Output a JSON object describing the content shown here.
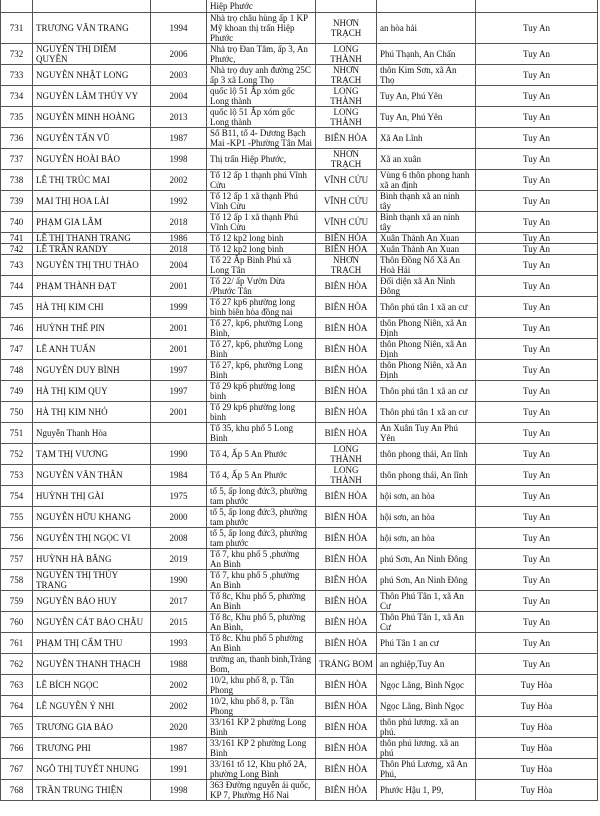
{
  "partial_row": {
    "address": "Hiệp Phước"
  },
  "rows": [
    [
      "731",
      "TRƯƠNG VĂN TRANG",
      "1994",
      "Nhà trọ châu hùng ấp 1 KP Mỹ khoan thị trấn Hiệp Phước",
      "NHƠN TRẠCH",
      "an hòa hải",
      "Tuy An"
    ],
    [
      "732",
      "NGUYỄN THỊ DIỄM QUYÊN",
      "2006",
      "Nhà trọ Đan Tâm, ấp 3, An Phước,",
      "LONG THÀNH",
      "Phú Thạnh, An Chấn",
      "Tuy An"
    ],
    [
      "733",
      "NGUYỄN NHẬT LONG",
      "2003",
      "Nhà trọ duy anh đường 25C ấp 3 xã Long Thọ",
      "NHƠN TRẠCH",
      "thôn Kim Sơn, xã An Thọ",
      "Tuy An"
    ],
    [
      "734",
      "NGUYỄN LÂM THÚY VY",
      "2004",
      "quốc lộ 51 Ấp xóm gốc Long thành",
      "LONG THÀNH",
      "Tuy An, Phú Yên",
      "Tuy An"
    ],
    [
      "735",
      "NGUYỄN MINH HOÀNG",
      "2013",
      "quốc lộ 51 Ấp xóm gốc Long thành",
      "LONG THÀNH",
      "Tuy An, Phú Yên",
      "Tuy An"
    ],
    [
      "736",
      "NGUYỄN TẤN VŨ",
      "1987",
      "Số B11, tổ 4- Dương Bạch Mai -KP1 -Phường Tân Mai",
      "BIÊN HÒA",
      "Xã An Lĩnh",
      "Tuy An"
    ],
    [
      "737",
      "NGUYỄN HOÀI BẢO",
      "1998",
      "Thị trấn Hiệp Phước,",
      "NHƠN TRẠCH",
      "Xã an xuân",
      "Tuy An"
    ],
    [
      "738",
      "LÊ THỊ TRÚC MAI",
      "2002",
      "Tổ 12 ấp 1 thạnh phú Vĩnh Cửu",
      "VĨNH CỬU",
      "Vùng 6 thôn phong hanh xã an định",
      "Tuy An"
    ],
    [
      "739",
      "MAI THỊ HOA LÀI",
      "1992",
      "Tổ 12 ấp 1 xã thạnh Phú Vĩnh Cửu",
      "VĨNH CỬU",
      "Bình thạnh xã an ninh tây",
      "Tuy An"
    ],
    [
      "740",
      "PHẠM GIA LÂM",
      "2018",
      "Tổ 12 ấp 1 xã thạnh Phú Vĩnh Cửu",
      "VĨNH CỬU",
      "Bình thạnh xã an ninh tây",
      "Tuy An"
    ],
    [
      "741",
      "LÊ THỊ THANH TRANG",
      "1986",
      "Tổ 12 kp2 long bình",
      "BIÊN HÒA",
      "Xuân Thành An Xuan",
      "Tuy An"
    ],
    [
      "742",
      "LÊ TRẦN RANDY",
      "2018",
      "Tổ 12 kp2 long bình",
      "BIÊN HÒA",
      "Xuân Thành An Xuan",
      "Tuy An"
    ],
    [
      "743",
      "NGUYỄN THỊ THU THẢO",
      "2004",
      "Tổ 22 Ấp Bình Phú xã Long Tân",
      "NHƠN TRẠCH",
      "Thôn Đồng Nổ Xã An Hoà Hải",
      "Tuy An"
    ],
    [
      "744",
      "PHẠM THÀNH ĐẠT",
      "2001",
      "Tổ 22/ ấp Vườn Dừa /Phước Tân",
      "BIÊN HÒA",
      "Đối diện xã An Ninh Đông",
      "Tuy An"
    ],
    [
      "745",
      "HÀ THỊ KIM CHI",
      "1999",
      "Tổ 27 kp6 phường long bình biên hòa đồng nai",
      "BIÊN HÒA",
      "Thôn phú tân 1 xã an cư",
      "Tuy An"
    ],
    [
      "746",
      "HUỲNH THẾ PIN",
      "2001",
      "Tổ 27, kp6, phường Long Bình,",
      "BIÊN HÒA",
      "thôn Phong Niên, xã An Định",
      "Tuy An"
    ],
    [
      "747",
      "LÊ ANH TUẤN",
      "2001",
      "Tổ 27, kp6, phường Long Bình",
      "BIÊN HÒA",
      "thôn Phong Niên, xã An Định",
      "Tuy An"
    ],
    [
      "748",
      "NGUYỄN DUY BÌNH",
      "1997",
      "Tổ 27, kp6, phường Long Bình",
      "BIÊN HÒA",
      "thôn Phong Niên, xã An Định",
      "Tuy An"
    ],
    [
      "749",
      "HÀ THỊ KIM QUY",
      "1997",
      "Tổ 29 kp6 phường long bình",
      "BIÊN HÒA",
      "Thôn phú tân 1 xã an cư",
      "Tuy An"
    ],
    [
      "750",
      "HÀ THỊ KIM NHỎ",
      "2001",
      "Tổ 29 kp6 phường long bình",
      "BIÊN HÒA",
      "Thôn phú tân 1 xã an cư",
      "Tuy An"
    ],
    [
      "751",
      "Nguyễn Thanh Hòa",
      "",
      "Tổ 35, khu phố 5 Long Bình",
      "BIÊN HÒA",
      "An Xuân Tuy An Phú Yên",
      "Tuy An"
    ],
    [
      "752",
      "TẠM THỊ VƯƠNG",
      "1990",
      "Tổ 4, Ấp 5 An Phước",
      "LONG THÀNH",
      "thôn phong thái, An lĩnh",
      "Tuy An"
    ],
    [
      "753",
      "NGUYỄN VĂN THÂN",
      "1984",
      "Tổ 4, Ấp 5 An Phước",
      "LONG THÀNH",
      "thôn phong thái, An lĩnh",
      "Tuy An"
    ],
    [
      "754",
      "HUỲNH THỊ GÀI",
      "1975",
      "tổ 5, ấp long đức3, phường tam phước",
      "BIÊN HÒA",
      "hội sơn, an hòa",
      "Tuy An"
    ],
    [
      "755",
      "NGUYỄN HỮU KHANG",
      "2000",
      "tổ 5, ấp long đức3, phường tam phước",
      "BIÊN HÒA",
      "hội sơn, an hòa",
      "Tuy An"
    ],
    [
      "756",
      "NGUYỄN THỊ NGỌC VI",
      "2008",
      "tổ 5, ấp long đức3, phường tam phước",
      "BIÊN HÒA",
      "hội sơn, an hòa",
      "Tuy An"
    ],
    [
      "757",
      "HUỲNH HÀ BĂNG",
      "2019",
      "Tổ 7, khu phố 5 ,phường An Bình",
      "BIÊN HÒA",
      "phú Sơn, An Ninh Đông",
      "Tuy An"
    ],
    [
      "758",
      "NGUYỄN THỊ THÚY TRANG",
      "1990",
      "Tổ 7, khu phố 5 ,phường An Bình",
      "BIÊN HÒA",
      "phú Sơn, An Ninh Đông",
      "Tuy An"
    ],
    [
      "759",
      "NGUYỄN BẢO HUY",
      "2017",
      "Tổ 8c, Khu phố 5, phường An Bình",
      "BIÊN HÒA",
      "Thôn Phú Tân 1, xã An Cư",
      "Tuy An"
    ],
    [
      "760",
      "NGUYỄN CÁT BẢO CHÂU",
      "2015",
      "Tổ 8c, Khu phố 5, phường An Bình,",
      "BIÊN HÒA",
      "Thôn Phú Tân 1, xã An Cư",
      "Tuy An"
    ],
    [
      "761",
      "PHẠM THỊ CẨM THU",
      "1993",
      "Tổ 8c. Khu phố 5 phường An Bình",
      "BIÊN HÒA",
      "Phú Tân 1 an cư",
      "Tuy An"
    ],
    [
      "762",
      "NGUYỄN THANH THẠCH",
      "1988",
      "trường an, thanh bình,Trảng Bom,",
      "TRẢNG BOM",
      "an nghiệp,Tuy An",
      "Tuy An"
    ],
    [
      "763",
      "LÊ BÍCH NGỌC",
      "2002",
      "10/2, khu phố 8, p. Tân Phong",
      "BIÊN HÒA",
      "Ngọc Lãng, Bình Ngọc",
      "Tuy Hòa"
    ],
    [
      "764",
      "LÊ NGUYỄN Ý NHI",
      "2002",
      "10/2, khu phố 8, p. Tân Phong",
      "BIÊN HÒA",
      "Ngọc Lãng, Bình Ngọc",
      "Tuy Hòa"
    ],
    [
      "765",
      "TRƯƠNG GIA BẢO",
      "2020",
      "33/161 KP 2 phường Long Bình",
      "BIÊN HÒA",
      "thôn phú lương. xã an phú.",
      "Tuy Hòa"
    ],
    [
      "766",
      "TRƯƠNG PHI",
      "1987",
      "33/161 KP 2 phường Long Bình",
      "BIÊN HÒA",
      "thôn phú lương. xã an phú",
      "Tuy Hòa"
    ],
    [
      "767",
      "NGÔ THỊ TUYẾT NHUNG",
      "1991",
      "33/161 tổ 12, Khu phố 2A, phường Long Bình",
      "BIÊN HÒA",
      "Thôn Phú Lương, xã An Phú,",
      "Tuy Hòa"
    ],
    [
      "768",
      "TRẦN TRUNG THIỆN",
      "1998",
      "363 Đường nguyễn ái quốc, KP 7, Phường Hố Nai",
      "BIÊN HÒA",
      "Phước Hậu 1, P9,",
      "Tuy Hòa"
    ]
  ]
}
